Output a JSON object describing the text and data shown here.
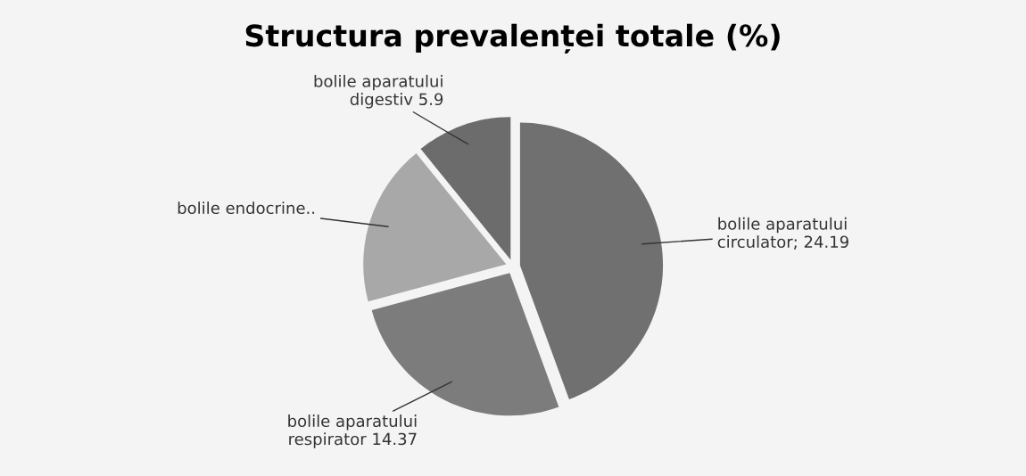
{
  "chart_data": {
    "type": "pie",
    "title": "Structura prevalenței totale (%)",
    "categories": [
      "bolile aparatului\ncirculator; 24.19",
      "bolile aparatului\nrespirator 14.37",
      "bolile endocrine..",
      "bolile aparatului\ndigestiv 5.9"
    ],
    "values": [
      24.19,
      14.37,
      10,
      5.9
    ],
    "colors": [
      "#707070",
      "#7c7c7c",
      "#a8a8a8",
      "#6c6c6c"
    ],
    "legend": false
  }
}
